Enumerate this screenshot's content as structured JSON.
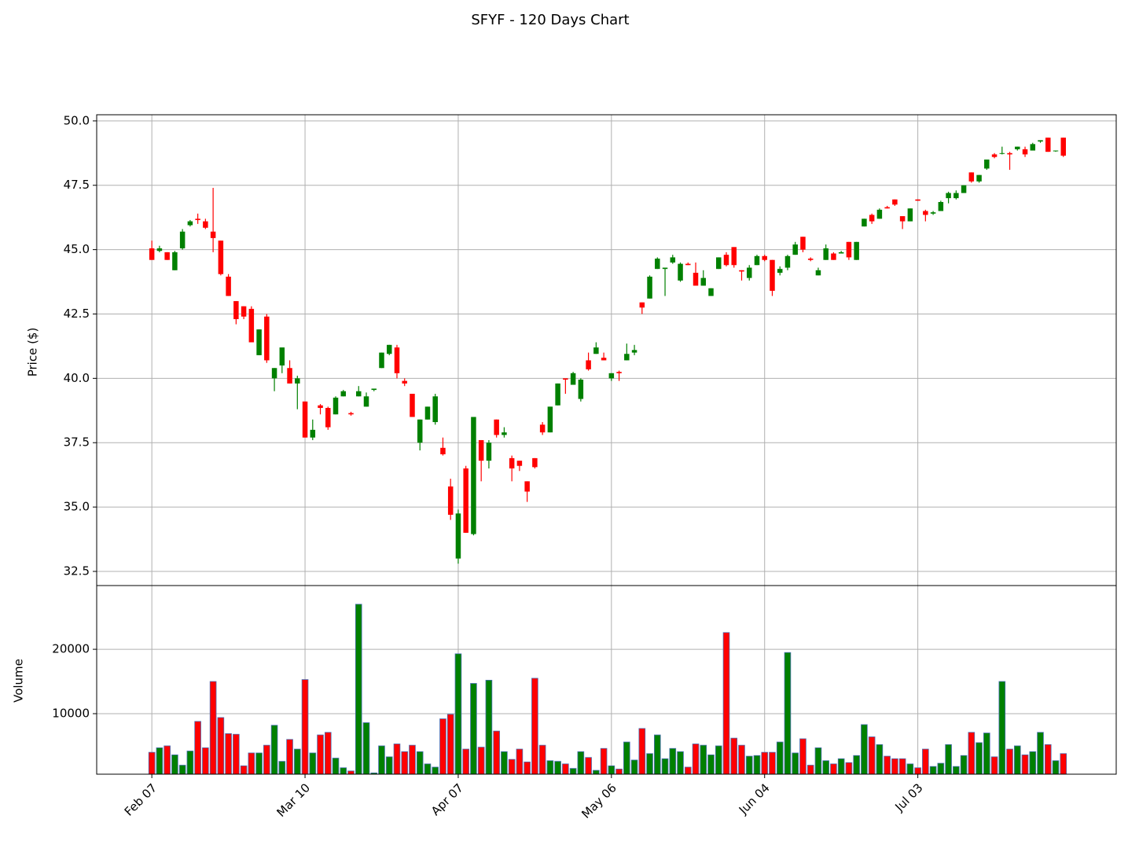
{
  "title": "SFYF - 120 Days Chart",
  "chart_data": [
    {
      "type": "candlestick",
      "ylabel": "Price ($)",
      "up_color": "#008000",
      "down_color": "#ff0000",
      "grid": true,
      "xlim": [
        -7.2,
        125.9
      ],
      "ylim": [
        31.95,
        50.24
      ],
      "yticks": [
        32.5,
        {
          "value": 35,
          "label": "35.0"
        },
        37.5,
        {
          "value": 40,
          "label": "40.0"
        },
        42.5,
        {
          "value": 45,
          "label": "45.0"
        },
        47.5,
        {
          "value": 50,
          "label": "50.0"
        }
      ],
      "open": [
        45.05,
        44.95,
        44.9,
        44.2,
        45.05,
        45.95,
        46.2,
        46.1,
        45.7,
        45.35,
        43.95,
        43.0,
        42.8,
        42.7,
        40.9,
        42.4,
        40.0,
        40.5,
        40.4,
        39.8,
        39.1,
        37.7,
        38.95,
        38.85,
        38.6,
        39.3,
        38.65,
        39.3,
        38.9,
        39.55,
        40.4,
        40.95,
        41.2,
        39.9,
        39.4,
        37.5,
        38.4,
        38.3,
        37.3,
        35.8,
        33.0,
        36.5,
        33.95,
        37.6,
        36.8,
        38.4,
        37.8,
        36.9,
        36.8,
        36.0,
        36.9,
        38.2,
        37.9,
        38.95,
        40.0,
        39.75,
        39.2,
        40.7,
        40.95,
        40.8,
        40.0,
        40.25,
        40.7,
        41.0,
        42.95,
        43.1,
        44.25,
        44.25,
        44.5,
        43.8,
        44.45,
        44.1,
        43.6,
        43.2,
        44.25,
        44.8,
        45.1,
        44.2,
        43.9,
        44.4,
        44.75,
        44.6,
        44.1,
        44.3,
        44.8,
        45.5,
        44.65,
        44.0,
        44.6,
        44.85,
        44.85,
        45.3,
        44.6,
        45.9,
        46.35,
        46.2,
        46.65,
        46.95,
        46.3,
        46.1,
        46.95,
        46.5,
        46.4,
        46.5,
        47.0,
        47.0,
        47.2,
        48.0,
        47.65,
        48.15,
        48.7,
        48.75,
        48.75,
        48.9,
        48.9,
        48.85,
        49.2,
        49.35,
        48.85,
        49.35
      ],
      "high": [
        45.35,
        45.15,
        44.9,
        44.95,
        45.8,
        46.15,
        46.4,
        46.2,
        47.4,
        45.35,
        44.05,
        43.0,
        42.8,
        42.8,
        41.9,
        42.5,
        40.4,
        41.2,
        40.7,
        40.1,
        39.1,
        38.4,
        39.0,
        38.9,
        39.3,
        39.55,
        38.7,
        39.7,
        39.45,
        39.6,
        41.0,
        41.3,
        41.3,
        40.0,
        39.4,
        38.4,
        38.9,
        39.4,
        37.7,
        36.1,
        34.9,
        36.6,
        38.5,
        37.6,
        37.6,
        38.4,
        38.1,
        37.0,
        36.8,
        36.0,
        36.9,
        38.3,
        38.9,
        39.8,
        40.0,
        40.25,
        40.0,
        41.0,
        41.4,
        41.0,
        40.2,
        40.3,
        41.35,
        41.3,
        42.95,
        44.0,
        44.7,
        44.3,
        44.8,
        44.5,
        44.5,
        44.5,
        44.2,
        43.5,
        44.7,
        44.9,
        45.1,
        44.2,
        44.4,
        44.8,
        44.8,
        44.6,
        44.35,
        44.8,
        45.3,
        45.5,
        44.7,
        44.3,
        45.2,
        44.9,
        44.95,
        45.3,
        45.3,
        46.2,
        46.4,
        46.6,
        46.7,
        46.95,
        46.3,
        46.6,
        46.95,
        46.55,
        46.5,
        46.9,
        47.25,
        47.3,
        47.5,
        48.0,
        47.9,
        48.5,
        48.75,
        49.0,
        48.8,
        49.0,
        49.0,
        49.15,
        49.25,
        49.35,
        48.85,
        49.35
      ],
      "low": [
        44.6,
        44.9,
        44.6,
        44.2,
        45.0,
        45.9,
        46.0,
        45.8,
        44.9,
        44.0,
        43.2,
        42.1,
        42.3,
        41.4,
        40.9,
        40.6,
        39.5,
        40.2,
        39.8,
        38.8,
        37.7,
        37.6,
        38.6,
        38.0,
        38.6,
        39.3,
        38.55,
        39.3,
        38.9,
        39.5,
        40.4,
        40.9,
        40.0,
        39.7,
        38.5,
        37.2,
        38.4,
        38.2,
        37.0,
        34.5,
        32.8,
        34.0,
        33.9,
        36.0,
        36.5,
        37.7,
        37.7,
        36.0,
        36.4,
        35.2,
        36.5,
        37.8,
        37.9,
        38.95,
        39.4,
        39.75,
        39.1,
        40.3,
        40.95,
        40.7,
        39.9,
        39.9,
        40.7,
        40.9,
        42.5,
        43.1,
        44.25,
        43.2,
        44.45,
        43.75,
        44.4,
        43.6,
        43.6,
        43.2,
        44.25,
        44.35,
        44.3,
        43.8,
        43.8,
        44.4,
        44.55,
        43.2,
        44.0,
        44.2,
        44.8,
        44.9,
        44.55,
        44.0,
        44.6,
        44.6,
        44.85,
        44.6,
        44.6,
        45.9,
        46.0,
        46.2,
        46.6,
        46.7,
        45.8,
        46.1,
        46.9,
        46.1,
        46.35,
        46.5,
        46.8,
        46.95,
        47.2,
        47.6,
        47.6,
        48.1,
        48.55,
        48.7,
        48.1,
        48.85,
        48.6,
        48.85,
        49.15,
        48.8,
        48.8,
        48.6
      ],
      "close": [
        44.6,
        45.05,
        44.6,
        44.9,
        45.7,
        46.1,
        46.15,
        45.85,
        45.45,
        44.05,
        43.2,
        42.3,
        42.4,
        41.4,
        41.9,
        40.7,
        40.4,
        41.2,
        39.8,
        40.0,
        37.7,
        38.0,
        38.85,
        38.1,
        39.25,
        39.5,
        38.6,
        39.5,
        39.3,
        39.6,
        41.0,
        41.3,
        40.2,
        39.8,
        38.5,
        38.4,
        38.9,
        39.3,
        37.05,
        34.7,
        34.75,
        34.0,
        38.5,
        36.8,
        37.5,
        37.8,
        37.9,
        36.5,
        36.6,
        35.6,
        36.55,
        37.9,
        38.9,
        39.8,
        39.95,
        40.2,
        39.95,
        40.35,
        41.2,
        40.7,
        40.2,
        40.2,
        40.95,
        41.1,
        42.75,
        43.95,
        44.65,
        44.3,
        44.7,
        44.45,
        44.4,
        43.6,
        43.9,
        43.5,
        44.7,
        44.4,
        44.4,
        44.15,
        44.3,
        44.75,
        44.6,
        43.4,
        44.25,
        44.75,
        45.2,
        45.0,
        44.6,
        44.2,
        45.05,
        44.6,
        44.9,
        44.7,
        45.3,
        46.2,
        46.1,
        46.55,
        46.6,
        46.75,
        46.1,
        46.6,
        46.9,
        46.35,
        46.45,
        46.85,
        47.2,
        47.2,
        47.5,
        47.65,
        47.9,
        48.5,
        48.6,
        48.75,
        48.7,
        49.0,
        48.7,
        49.1,
        49.25,
        48.8,
        48.85,
        48.65
      ]
    },
    {
      "type": "bar",
      "ylabel": "Volume",
      "edge_color": "#4a6fb5",
      "grid": true,
      "xlim": [
        -7.2,
        125.9
      ],
      "ylim": [
        600,
        29900
      ],
      "yticks": [
        10000,
        20000
      ],
      "xticks": [
        {
          "value": 0,
          "label": "Feb 07"
        },
        {
          "value": 20,
          "label": "Mar 10"
        },
        {
          "value": 40,
          "label": "Apr 07"
        },
        {
          "value": 60,
          "label": "May 06"
        },
        {
          "value": 80,
          "label": "Jun 04"
        },
        {
          "value": 100,
          "label": "Jul 03"
        }
      ],
      "values": [
        4000,
        4700,
        5000,
        3600,
        2000,
        4200,
        8800,
        4700,
        15000,
        9400,
        6900,
        6800,
        1900,
        3900,
        3900,
        5100,
        8200,
        2600,
        6000,
        4500,
        15300,
        3900,
        6700,
        7100,
        3100,
        1600,
        1100,
        27000,
        8600,
        800,
        5000,
        3300,
        5300,
        4100,
        5100,
        4100,
        2200,
        1700,
        9200,
        9900,
        19300,
        4500,
        14700,
        4800,
        15200,
        7300,
        4100,
        2900,
        4500,
        2500,
        15500,
        5100,
        2700,
        2600,
        2200,
        1500,
        4100,
        3200,
        1200,
        4600,
        1900,
        1400,
        5600,
        2800,
        7700,
        3800,
        6700,
        3000,
        4600,
        4100,
        1700,
        5300,
        5100,
        3600,
        5000,
        22600,
        6200,
        5100,
        3400,
        3500,
        4000,
        4000,
        5600,
        19500,
        3900,
        6100,
        2000,
        4700,
        2700,
        2200,
        3000,
        2400,
        3500,
        8300,
        6400,
        5200,
        3400,
        3000,
        3000,
        2200,
        1600,
        4500,
        1800,
        2300,
        5200,
        1800,
        3500,
        7100,
        5500,
        7000,
        3300,
        15000,
        4500,
        5000,
        3600,
        4100,
        7100,
        5200,
        2700,
        3800
      ]
    }
  ]
}
